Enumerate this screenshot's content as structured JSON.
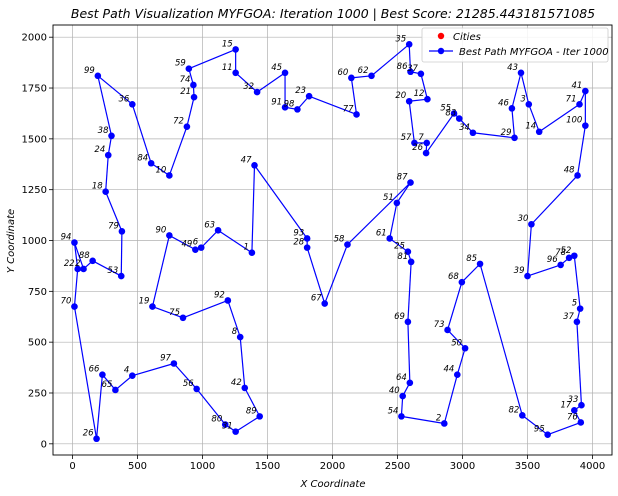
{
  "colors": {
    "path": "#0000ff",
    "city": "#ff0000",
    "grid": "#b0b0b0",
    "axis": "#000000"
  },
  "legend": {
    "placement": "top-right",
    "items": [
      {
        "label": "Cities",
        "color": "#ff0000",
        "marker": "dot"
      },
      {
        "label": "Best Path MYFGOA - Iter 1000",
        "color": "#0000ff",
        "marker": "line-dot"
      }
    ]
  },
  "chart_data": {
    "type": "line",
    "title": "Best Path Visualization MYFGOA: Iteration 1000 | Best Score: 21285.443181571085",
    "xlabel": "X Coordinate",
    "ylabel": "Y Coordinate",
    "xlim": [
      -150,
      4150
    ],
    "ylim": [
      -55,
      2060
    ],
    "xticks": [
      0,
      500,
      1000,
      1500,
      2000,
      2500,
      3000,
      3500,
      4000
    ],
    "yticks": [
      0,
      250,
      500,
      750,
      1000,
      1250,
      1500,
      1750,
      2000
    ],
    "grid": true,
    "series": [
      {
        "name": "Best Path MYFGOA - Iter 1000",
        "points": [
          {
            "label": "11",
            "x": 1255,
            "y": 1825
          },
          {
            "label": "32",
            "x": 1420,
            "y": 1730
          },
          {
            "label": "45",
            "x": 1635,
            "y": 1825
          },
          {
            "label": "91",
            "x": 1635,
            "y": 1655
          },
          {
            "label": "98",
            "x": 1730,
            "y": 1645
          },
          {
            "label": "23",
            "x": 1820,
            "y": 1710
          },
          {
            "label": "77",
            "x": 2185,
            "y": 1620
          },
          {
            "label": "60",
            "x": 2145,
            "y": 1800
          },
          {
            "label": "62",
            "x": 2300,
            "y": 1810
          },
          {
            "label": "35",
            "x": 2590,
            "y": 1965
          },
          {
            "label": "86",
            "x": 2600,
            "y": 1830
          },
          {
            "label": "37",
            "x": 2680,
            "y": 1820
          },
          {
            "label": "12",
            "x": 2730,
            "y": 1695
          },
          {
            "label": "20",
            "x": 2590,
            "y": 1685
          },
          {
            "label": "57",
            "x": 2630,
            "y": 1480
          },
          {
            "label": "7",
            "x": 2725,
            "y": 1480
          },
          {
            "label": "26",
            "x": 2720,
            "y": 1430
          },
          {
            "label": "55",
            "x": 2935,
            "y": 1625
          },
          {
            "label": "83",
            "x": 2975,
            "y": 1600
          },
          {
            "label": "34",
            "x": 3080,
            "y": 1530
          },
          {
            "label": "29",
            "x": 3400,
            "y": 1505
          },
          {
            "label": "46",
            "x": 3380,
            "y": 1650
          },
          {
            "label": "43",
            "x": 3450,
            "y": 1825
          },
          {
            "label": "3",
            "x": 3510,
            "y": 1670
          },
          {
            "label": "14",
            "x": 3590,
            "y": 1535
          },
          {
            "label": "71",
            "x": 3900,
            "y": 1670
          },
          {
            "label": "41",
            "x": 3945,
            "y": 1735
          },
          {
            "label": "100",
            "x": 3945,
            "y": 1565
          },
          {
            "label": "48",
            "x": 3885,
            "y": 1320
          },
          {
            "label": "30",
            "x": 3530,
            "y": 1080
          },
          {
            "label": "39",
            "x": 3500,
            "y": 825
          },
          {
            "label": "96",
            "x": 3755,
            "y": 880
          },
          {
            "label": "78",
            "x": 3820,
            "y": 915
          },
          {
            "label": "52",
            "x": 3860,
            "y": 925
          },
          {
            "label": "5",
            "x": 3905,
            "y": 665
          },
          {
            "label": "37",
            "x": 3880,
            "y": 600
          },
          {
            "label": "33",
            "x": 3915,
            "y": 190
          },
          {
            "label": "17",
            "x": 3860,
            "y": 165
          },
          {
            "label": "76",
            "x": 3910,
            "y": 105
          },
          {
            "label": "95",
            "x": 3655,
            "y": 45
          },
          {
            "label": "82",
            "x": 3460,
            "y": 140
          },
          {
            "label": "85",
            "x": 3135,
            "y": 885
          },
          {
            "label": "68",
            "x": 2995,
            "y": 795
          },
          {
            "label": "73",
            "x": 2885,
            "y": 560
          },
          {
            "label": "50",
            "x": 3020,
            "y": 470
          },
          {
            "label": "44",
            "x": 2960,
            "y": 340
          },
          {
            "label": "2",
            "x": 2860,
            "y": 100
          },
          {
            "label": "54",
            "x": 2530,
            "y": 135
          },
          {
            "label": "40",
            "x": 2540,
            "y": 235
          },
          {
            "label": "64",
            "x": 2595,
            "y": 300
          },
          {
            "label": "69",
            "x": 2580,
            "y": 600
          },
          {
            "label": "81",
            "x": 2605,
            "y": 895
          },
          {
            "label": "25",
            "x": 2580,
            "y": 945
          },
          {
            "label": "61",
            "x": 2440,
            "y": 1010
          },
          {
            "label": "51",
            "x": 2495,
            "y": 1185
          },
          {
            "label": "87",
            "x": 2600,
            "y": 1285
          },
          {
            "label": "58",
            "x": 2115,
            "y": 980
          },
          {
            "label": "67",
            "x": 1940,
            "y": 690
          },
          {
            "label": "28",
            "x": 1805,
            "y": 965
          },
          {
            "label": "93",
            "x": 1805,
            "y": 1010
          },
          {
            "label": "47",
            "x": 1400,
            "y": 1370
          },
          {
            "label": "1",
            "x": 1380,
            "y": 940
          },
          {
            "label": "63",
            "x": 1120,
            "y": 1050
          },
          {
            "label": "6",
            "x": 990,
            "y": 965
          },
          {
            "label": "49",
            "x": 945,
            "y": 955
          },
          {
            "label": "90",
            "x": 745,
            "y": 1025
          },
          {
            "label": "19",
            "x": 615,
            "y": 675
          },
          {
            "label": "75",
            "x": 850,
            "y": 620
          },
          {
            "label": "92",
            "x": 1195,
            "y": 705
          },
          {
            "label": "8",
            "x": 1290,
            "y": 525
          },
          {
            "label": "42",
            "x": 1325,
            "y": 275
          },
          {
            "label": "89",
            "x": 1440,
            "y": 135
          },
          {
            "label": "31",
            "x": 1255,
            "y": 60
          },
          {
            "label": "80",
            "x": 1175,
            "y": 95
          },
          {
            "label": "56",
            "x": 955,
            "y": 270
          },
          {
            "label": "97",
            "x": 780,
            "y": 395
          },
          {
            "label": "4",
            "x": 460,
            "y": 335
          },
          {
            "label": "65",
            "x": 330,
            "y": 265
          },
          {
            "label": "66",
            "x": 230,
            "y": 340
          },
          {
            "label": "26",
            "x": 185,
            "y": 25
          },
          {
            "label": "70",
            "x": 15,
            "y": 675
          },
          {
            "label": "22",
            "x": 40,
            "y": 860
          },
          {
            "label": "94",
            "x": 15,
            "y": 990
          },
          {
            "label": "2",
            "x": 85,
            "y": 860
          },
          {
            "label": "88",
            "x": 155,
            "y": 900
          },
          {
            "label": "53",
            "x": 375,
            "y": 825
          },
          {
            "label": "79",
            "x": 380,
            "y": 1045
          },
          {
            "label": "18",
            "x": 255,
            "y": 1240
          },
          {
            "label": "24",
            "x": 275,
            "y": 1420
          },
          {
            "label": "38",
            "x": 300,
            "y": 1515
          },
          {
            "label": "99",
            "x": 195,
            "y": 1810
          },
          {
            "label": "36",
            "x": 460,
            "y": 1670
          },
          {
            "label": "84",
            "x": 605,
            "y": 1380
          },
          {
            "label": "10",
            "x": 745,
            "y": 1320
          },
          {
            "label": "72",
            "x": 880,
            "y": 1560
          },
          {
            "label": "21",
            "x": 935,
            "y": 1705
          },
          {
            "label": "74",
            "x": 930,
            "y": 1765
          },
          {
            "label": "59",
            "x": 895,
            "y": 1845
          },
          {
            "label": "15",
            "x": 1255,
            "y": 1940
          },
          {
            "label": "11",
            "x": 1255,
            "y": 1825
          }
        ]
      }
    ]
  }
}
